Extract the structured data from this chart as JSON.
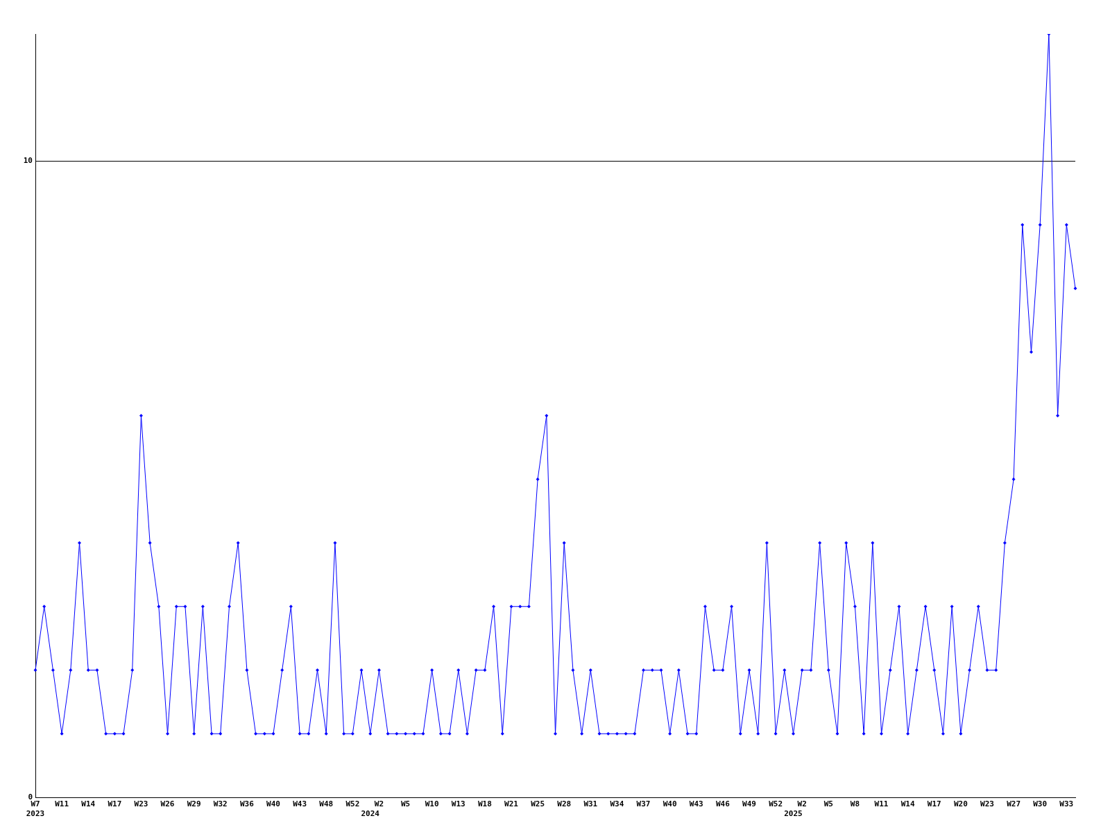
{
  "chart_data": {
    "type": "line",
    "categories": [
      "W7\n2023",
      null,
      null,
      "W11",
      null,
      null,
      "W14",
      null,
      null,
      "W17",
      null,
      null,
      "W23",
      null,
      null,
      "W26",
      null,
      null,
      "W29",
      null,
      null,
      "W32",
      null,
      null,
      "W36",
      null,
      null,
      "W40",
      null,
      null,
      "W43",
      null,
      null,
      "W48",
      null,
      null,
      "W52",
      null,
      "\n2024",
      "W2",
      null,
      null,
      "W5",
      null,
      null,
      "W10",
      null,
      null,
      "W13",
      null,
      null,
      "W18",
      null,
      null,
      "W21",
      null,
      null,
      "W25",
      null,
      null,
      "W28",
      null,
      null,
      "W31",
      null,
      null,
      "W34",
      null,
      null,
      "W37",
      null,
      null,
      "W40",
      null,
      null,
      "W43",
      null,
      null,
      "W46",
      null,
      null,
      "W49",
      null,
      null,
      "W52",
      null,
      "\n2025",
      "W2",
      null,
      null,
      "W5",
      null,
      null,
      "W8",
      null,
      null,
      "W11",
      null,
      null,
      "W14",
      null,
      null,
      "W17",
      null,
      null,
      "W20",
      null,
      null,
      "W23",
      null,
      null,
      "W27",
      null,
      null,
      "W30",
      null,
      null,
      "W33",
      null
    ],
    "series": [
      {
        "color": "#0000ff",
        "values": [
          2,
          3,
          2,
          1,
          2,
          4,
          2,
          2,
          1,
          1,
          1,
          2,
          6,
          4,
          3,
          1,
          3,
          3,
          1,
          3,
          1,
          1,
          3,
          4,
          2,
          1,
          1,
          1,
          2,
          3,
          1,
          1,
          2,
          1,
          4,
          1,
          1,
          2,
          1,
          2,
          1,
          1,
          1,
          1,
          1,
          2,
          1,
          1,
          2,
          1,
          2,
          2,
          3,
          1,
          3,
          3,
          3,
          5,
          6,
          1,
          4,
          2,
          1,
          2,
          1,
          1,
          1,
          1,
          1,
          2,
          2,
          2,
          1,
          2,
          1,
          1,
          3,
          2,
          2,
          3,
          1,
          2,
          1,
          4,
          1,
          2,
          1,
          2,
          2,
          4,
          2,
          1,
          4,
          3,
          1,
          4,
          1,
          2,
          3,
          1,
          2,
          3,
          2,
          1,
          3,
          1,
          2,
          3,
          2,
          2,
          4,
          5,
          9,
          7,
          9,
          12,
          6,
          9,
          8
        ]
      }
    ],
    "ylim": [
      0,
      12
    ],
    "yticks": [
      0,
      10
    ],
    "grid": "y",
    "marker": "diamond",
    "line_style": "solid",
    "legend": false
  }
}
